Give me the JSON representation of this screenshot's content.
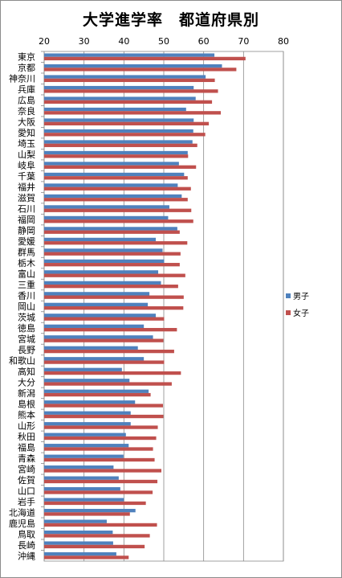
{
  "chart_data": {
    "type": "bar",
    "orientation": "horizontal",
    "title": "大学進学率　都道府県別",
    "xlim": [
      20,
      80
    ],
    "xticks": [
      20,
      30,
      40,
      50,
      60,
      70,
      80
    ],
    "grid": true,
    "legend_position": "right",
    "categories": [
      "東京",
      "京都",
      "神奈川",
      "兵庫",
      "広島",
      "奈良",
      "大阪",
      "愛知",
      "埼玉",
      "山梨",
      "岐阜",
      "千葉",
      "福井",
      "滋賀",
      "石川",
      "福岡",
      "静岡",
      "愛媛",
      "群馬",
      "栃木",
      "富山",
      "三重",
      "香川",
      "岡山",
      "茨城",
      "徳島",
      "宮城",
      "長野",
      "和歌山",
      "高知",
      "大分",
      "新潟",
      "島根",
      "熊本",
      "山形",
      "秋田",
      "福島",
      "青森",
      "宮崎",
      "佐賀",
      "山口",
      "岩手",
      "北海道",
      "鹿児島",
      "鳥取",
      "長崎",
      "沖縄"
    ],
    "series": [
      {
        "name": "男子",
        "color": "#4f81bd",
        "values": [
          62.7,
          64.6,
          60.5,
          57.5,
          58.0,
          55.6,
          57.5,
          57.4,
          57.2,
          56.0,
          53.8,
          55.1,
          53.5,
          54.5,
          51.4,
          51.1,
          53.4,
          48.0,
          49.7,
          50.1,
          48.6,
          49.3,
          46.4,
          46.0,
          48.0,
          45.0,
          47.3,
          43.5,
          45.0,
          39.5,
          41.4,
          46.2,
          42.8,
          41.7,
          41.7,
          40.5,
          41.2,
          39.9,
          37.4,
          38.7,
          39.1,
          40.0,
          42.9,
          35.7,
          37.2,
          37.3,
          38.1
        ]
      },
      {
        "name": "女子",
        "color": "#c0504d",
        "values": [
          70.5,
          68.2,
          62.8,
          63.6,
          62.1,
          64.3,
          61.3,
          60.4,
          58.4,
          56.1,
          58.1,
          56.0,
          56.8,
          56.0,
          56.9,
          57.4,
          54.0,
          55.9,
          54.2,
          54.0,
          55.4,
          53.6,
          55.0,
          54.9,
          50.1,
          53.3,
          49.9,
          52.6,
          50.1,
          54.3,
          52.0,
          46.7,
          49.8,
          49.9,
          48.5,
          48.1,
          47.3,
          47.7,
          49.4,
          48.4,
          47.2,
          45.5,
          41.5,
          48.3,
          46.5,
          45.2,
          41.2
        ]
      }
    ]
  }
}
